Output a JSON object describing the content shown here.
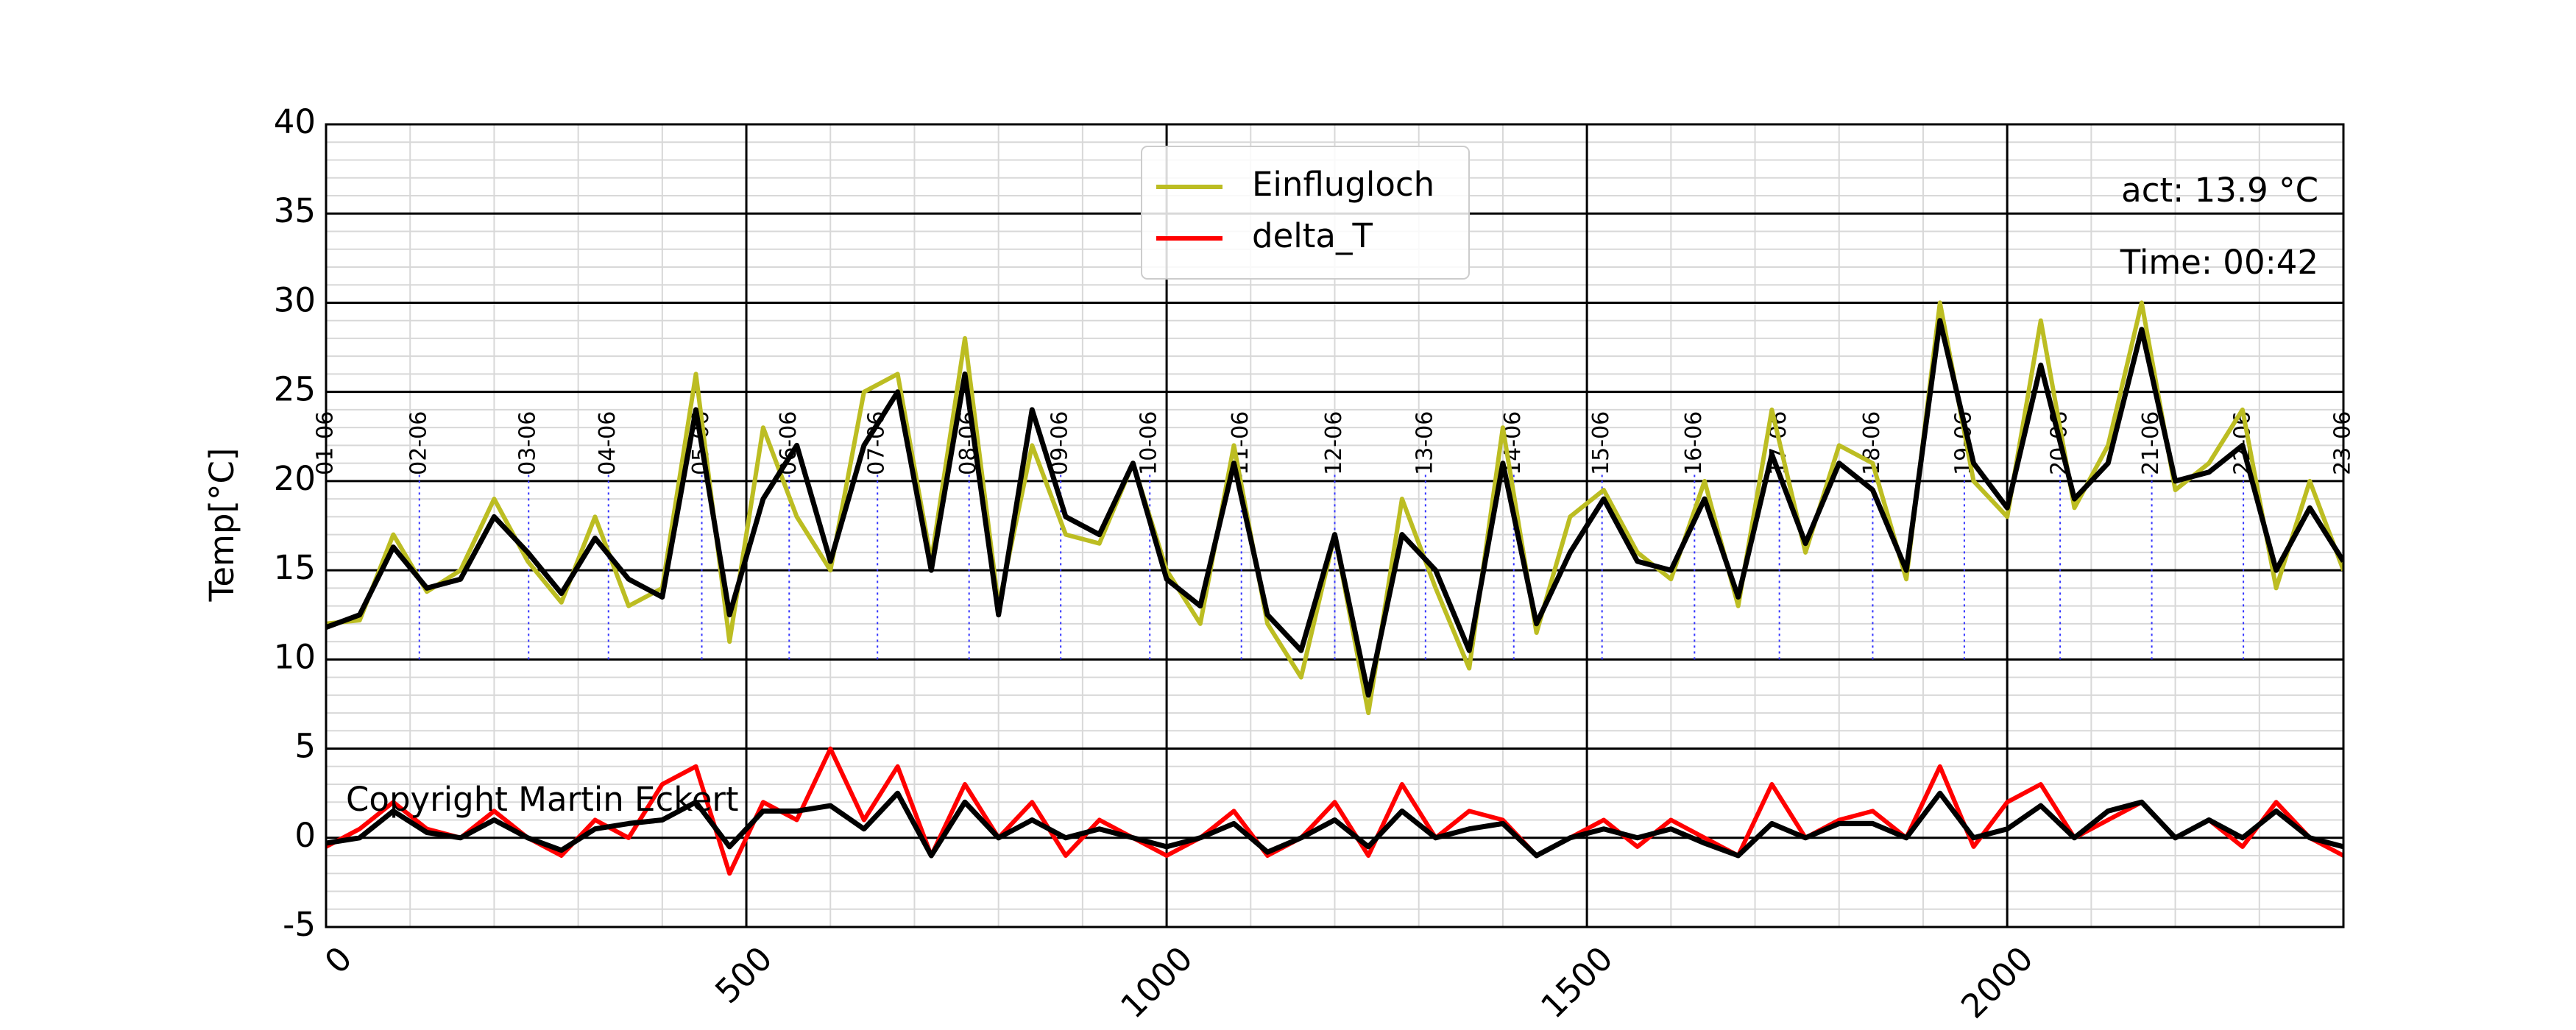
{
  "chart_data": {
    "type": "line",
    "ylabel": "Temp[°C]",
    "xlim": [
      0,
      2400
    ],
    "ylim": [
      -5,
      40
    ],
    "xticks": [
      0,
      500,
      1000,
      1500,
      2000
    ],
    "yticks": [
      -5,
      0,
      5,
      10,
      15,
      20,
      25,
      30,
      35,
      40
    ],
    "grid": true,
    "legend": "upper center",
    "annotations": [
      "act: 13.9 °C",
      "Time: 00:42",
      "Copyright Martin Eckert"
    ],
    "day_labels": [
      {
        "x": 0,
        "label": "01-06"
      },
      {
        "x": 111,
        "label": "02-06"
      },
      {
        "x": 241,
        "label": "03-06"
      },
      {
        "x": 336,
        "label": "04-06"
      },
      {
        "x": 447,
        "label": "05-06"
      },
      {
        "x": 551,
        "label": "06-06"
      },
      {
        "x": 656,
        "label": "07-06"
      },
      {
        "x": 765,
        "label": "08-06"
      },
      {
        "x": 874,
        "label": "09-06"
      },
      {
        "x": 980,
        "label": "10-06"
      },
      {
        "x": 1089,
        "label": "11-06"
      },
      {
        "x": 1200,
        "label": "12-06"
      },
      {
        "x": 1308,
        "label": "13-06"
      },
      {
        "x": 1413,
        "label": "14-06"
      },
      {
        "x": 1518,
        "label": "15-06"
      },
      {
        "x": 1628,
        "label": "16-06"
      },
      {
        "x": 1729,
        "label": "17-06"
      },
      {
        "x": 1840,
        "label": "18-06"
      },
      {
        "x": 1949,
        "label": "19-06"
      },
      {
        "x": 2063,
        "label": "20-06"
      },
      {
        "x": 2172,
        "label": "21-06"
      },
      {
        "x": 2281,
        "label": "22-06"
      },
      {
        "x": 2400,
        "label": "23-06"
      }
    ],
    "x": [
      0,
      40,
      80,
      120,
      160,
      200,
      240,
      280,
      320,
      360,
      400,
      440,
      480,
      520,
      560,
      600,
      640,
      680,
      720,
      760,
      800,
      840,
      880,
      920,
      960,
      1000,
      1040,
      1080,
      1120,
      1160,
      1200,
      1240,
      1280,
      1320,
      1360,
      1400,
      1440,
      1480,
      1520,
      1560,
      1600,
      1640,
      1680,
      1720,
      1760,
      1800,
      1840,
      1880,
      1920,
      1960,
      2000,
      2040,
      2080,
      2120,
      2160,
      2200,
      2240,
      2280,
      2320,
      2360,
      2400
    ],
    "series": [
      {
        "name": "Einflugloch",
        "color": "#bcbd22",
        "values": [
          12,
          12.2,
          17,
          13.8,
          15,
          19,
          15.5,
          13.2,
          18,
          13,
          14,
          26,
          11,
          23,
          18,
          15,
          25,
          26,
          15.5,
          28,
          13,
          22,
          17,
          16.5,
          21,
          15,
          12,
          22,
          12,
          9,
          17,
          7,
          19,
          14,
          9.5,
          23,
          11.5,
          18,
          19.5,
          16,
          14.5,
          20,
          13,
          24,
          16,
          22,
          21,
          14.5,
          30,
          20,
          18,
          29,
          18.5,
          22,
          30,
          19.5,
          21,
          24,
          14,
          20,
          15
        ]
      },
      {
        "name": "delta_T",
        "color": "#ff0000",
        "values": [
          -0.5,
          0.5,
          2,
          0.5,
          0,
          1.5,
          0,
          -1,
          1,
          0,
          3,
          4,
          -2,
          2,
          1,
          5,
          1,
          4,
          -1,
          3,
          0,
          2,
          -1,
          1,
          0,
          -1,
          0,
          1.5,
          -1,
          0,
          2,
          -1,
          3,
          0,
          1.5,
          1,
          -1,
          0,
          1,
          -0.5,
          1,
          0,
          -1,
          3,
          0,
          1,
          1.5,
          0,
          4,
          -0.5,
          2,
          3,
          0,
          1,
          2,
          0,
          1,
          -0.5,
          2,
          0,
          -1
        ]
      },
      {
        "color": "#000000",
        "values": [
          11.8,
          12.5,
          16.3,
          14,
          14.5,
          18,
          16,
          13.7,
          16.8,
          14.5,
          13.5,
          24,
          12.5,
          19,
          22,
          15.5,
          22,
          25,
          15,
          26,
          12.5,
          24,
          18,
          17,
          21,
          14.5,
          13,
          21,
          12.5,
          10.5,
          17,
          8,
          17,
          15,
          10.5,
          21,
          12,
          16,
          19,
          15.5,
          15,
          19,
          13.5,
          21.5,
          16.5,
          21,
          19.5,
          15,
          29,
          21,
          18.5,
          26.5,
          19,
          21,
          28.5,
          20,
          20.5,
          22,
          15,
          18.5,
          15.5
        ]
      },
      {
        "color": "#000000",
        "values": [
          -0.3,
          0,
          1.5,
          0.3,
          0,
          1,
          0,
          -0.7,
          0.5,
          0.8,
          1,
          2,
          -0.5,
          1.5,
          1.5,
          1.8,
          0.5,
          2.5,
          -1,
          2,
          0,
          1,
          0,
          0.5,
          0,
          -0.5,
          0,
          0.8,
          -0.8,
          0,
          1,
          -0.5,
          1.5,
          0,
          0.5,
          0.8,
          -1,
          0,
          0.5,
          0,
          0.5,
          -0.3,
          -1,
          0.8,
          0,
          0.8,
          0.8,
          0,
          2.5,
          0,
          0.5,
          1.8,
          0,
          1.5,
          2,
          0,
          1,
          0,
          1.5,
          0,
          -0.5
        ]
      }
    ]
  }
}
